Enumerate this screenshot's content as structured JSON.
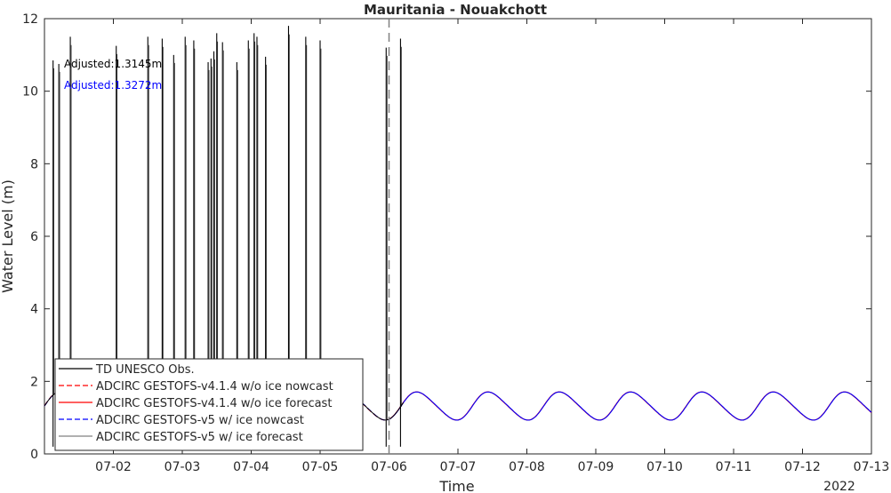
{
  "chart_data": {
    "type": "line",
    "title": "Mauritania - Nouakchott",
    "xlabel": "Time",
    "ylabel": "Water Level (m)",
    "year_label": "2022",
    "x_domain": [
      "2022-07-01T00:00",
      "2022-07-13T00:00"
    ],
    "xlim_labels": [
      "07-02",
      "07-03",
      "07-04",
      "07-05",
      "07-06",
      "07-07",
      "07-08",
      "07-09",
      "07-10",
      "07-11",
      "07-12",
      "07-13"
    ],
    "ylim": [
      0,
      12
    ],
    "yticks": [
      0,
      2,
      4,
      6,
      8,
      10,
      12
    ],
    "nowcast_forecast_divider": "2022-07-06T00:00",
    "annotations": [
      {
        "text": "Adjusted:1.3145m",
        "color": "#000000"
      },
      {
        "text": "Adjusted:1.3272m",
        "color": "#0000ff"
      }
    ],
    "legend": {
      "placement": "bottom-left",
      "entries": [
        {
          "label": "TD UNESCO Obs.",
          "color": "#000000",
          "style": "solid"
        },
        {
          "label": "ADCIRC GESTOFS-v4.1.4 w/o ice nowcast",
          "color": "#ff0000",
          "style": "dashed"
        },
        {
          "label": "ADCIRC GESTOFS-v4.1.4 w/o ice forecast",
          "color": "#ff0000",
          "style": "solid"
        },
        {
          "label": "ADCIRC GESTOFS-v5 w/ ice nowcast",
          "color": "#0000ff",
          "style": "dashed"
        },
        {
          "label": "ADCIRC GESTOFS-v5 w/ ice forecast",
          "color": "#808080",
          "style": "solid"
        }
      ]
    },
    "tide_model": {
      "mean": 1.32,
      "amplitude": 0.38,
      "period_hours": 24.84
    },
    "obs_spikes": [
      {
        "t": "2022-07-01T03:00",
        "y": 10.85
      },
      {
        "t": "2022-07-01T05:00",
        "y": 10.75
      },
      {
        "t": "2022-07-01T09:00",
        "y": 11.5
      },
      {
        "t": "2022-07-02T01:00",
        "y": 11.25
      },
      {
        "t": "2022-07-02T12:00",
        "y": 11.5
      },
      {
        "t": "2022-07-02T17:00",
        "y": 11.45
      },
      {
        "t": "2022-07-02T21:00",
        "y": 11.0
      },
      {
        "t": "2022-07-03T01:00",
        "y": 11.5
      },
      {
        "t": "2022-07-03T04:00",
        "y": 11.4
      },
      {
        "t": "2022-07-03T09:00",
        "y": 10.8
      },
      {
        "t": "2022-07-03T10:00",
        "y": 10.9
      },
      {
        "t": "2022-07-03T11:00",
        "y": 11.1
      },
      {
        "t": "2022-07-03T12:00",
        "y": 11.6
      },
      {
        "t": "2022-07-03T14:00",
        "y": 11.35
      },
      {
        "t": "2022-07-03T19:00",
        "y": 10.8
      },
      {
        "t": "2022-07-03T23:00",
        "y": 11.4
      },
      {
        "t": "2022-07-04T01:00",
        "y": 11.6
      },
      {
        "t": "2022-07-04T02:00",
        "y": 11.5
      },
      {
        "t": "2022-07-04T05:00",
        "y": 10.95
      },
      {
        "t": "2022-07-04T13:00",
        "y": 11.8
      },
      {
        "t": "2022-07-04T19:00",
        "y": 11.5
      },
      {
        "t": "2022-07-05T00:00",
        "y": 11.4
      },
      {
        "t": "2022-07-05T23:00",
        "y": 11.2
      },
      {
        "t": "2022-07-06T04:00",
        "y": 11.45
      }
    ]
  }
}
